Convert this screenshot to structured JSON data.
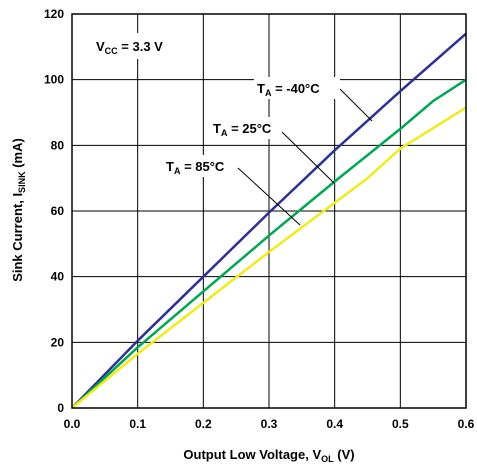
{
  "chart_data": {
    "type": "line",
    "title": "",
    "xlabel": {
      "main": "Output Low Voltage, V",
      "sub": "OL",
      "unit": " (V)"
    },
    "ylabel": {
      "main": "Sink Current, I",
      "sub": "SINK",
      "unit": " (mA)"
    },
    "xlim": [
      0,
      0.6
    ],
    "ylim": [
      0,
      120
    ],
    "x_ticks": [
      "0.0",
      "0.1",
      "0.2",
      "0.3",
      "0.4",
      "0.5",
      "0.6"
    ],
    "y_ticks": [
      "0",
      "20",
      "40",
      "60",
      "80",
      "100",
      "120"
    ],
    "grid": true,
    "condition": {
      "main": "V",
      "sub": "CC",
      "rest": " = 3.3 V"
    },
    "series": [
      {
        "name": "T_A = -40°C",
        "label": {
          "main": "T",
          "sub": "A",
          "rest": " = -40°C"
        },
        "color": "#2e3192",
        "x": [
          0,
          0.1,
          0.2,
          0.3,
          0.4,
          0.5,
          0.6
        ],
        "y": [
          0,
          20.5,
          40,
          59.5,
          78.5,
          96.5,
          114
        ]
      },
      {
        "name": "T_A = 25°C",
        "label": {
          "main": "T",
          "sub": "A",
          "rest": " = 25°C"
        },
        "color": "#00a651",
        "x": [
          0,
          0.1,
          0.2,
          0.3,
          0.4,
          0.5,
          0.55,
          0.6
        ],
        "y": [
          0,
          18.5,
          35.5,
          52.5,
          69,
          85,
          93.5,
          100
        ]
      },
      {
        "name": "T_A = 85°C",
        "label": {
          "main": "T",
          "sub": "A",
          "rest": " = 85°C"
        },
        "color": "#f2ea1a",
        "x": [
          0,
          0.1,
          0.2,
          0.3,
          0.4,
          0.45,
          0.5,
          0.6
        ],
        "y": [
          0,
          16.5,
          32,
          47.5,
          62.5,
          70,
          79,
          91.5
        ]
      }
    ]
  }
}
